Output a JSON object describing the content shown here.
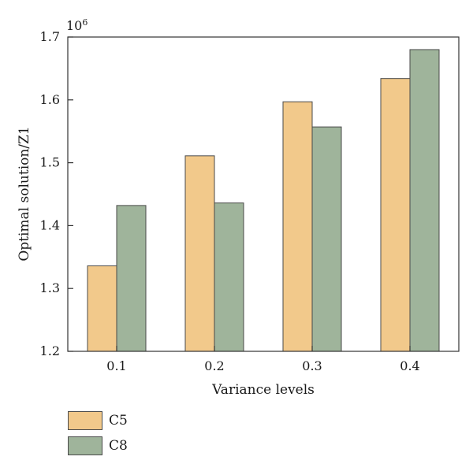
{
  "chart_data": {
    "type": "bar",
    "categories": [
      "0.1",
      "0.2",
      "0.3",
      "0.4"
    ],
    "series": [
      {
        "name": "C5",
        "color": "#f2c98b",
        "values": [
          1.336,
          1.511,
          1.597,
          1.634
        ]
      },
      {
        "name": "C8",
        "color": "#9fb49b",
        "values": [
          1.432,
          1.436,
          1.557,
          1.68
        ]
      }
    ],
    "xlabel": "Variance levels",
    "ylabel": "Optimal solution/Z1",
    "ylim": [
      1.2,
      1.7
    ],
    "yticks": [
      "1.2",
      "1.3",
      "1.4",
      "1.5",
      "1.6",
      "1.7"
    ],
    "y_multiplier": {
      "base": "10",
      "exponent": "6"
    },
    "legend_position": "bottom-left",
    "grid": false
  }
}
